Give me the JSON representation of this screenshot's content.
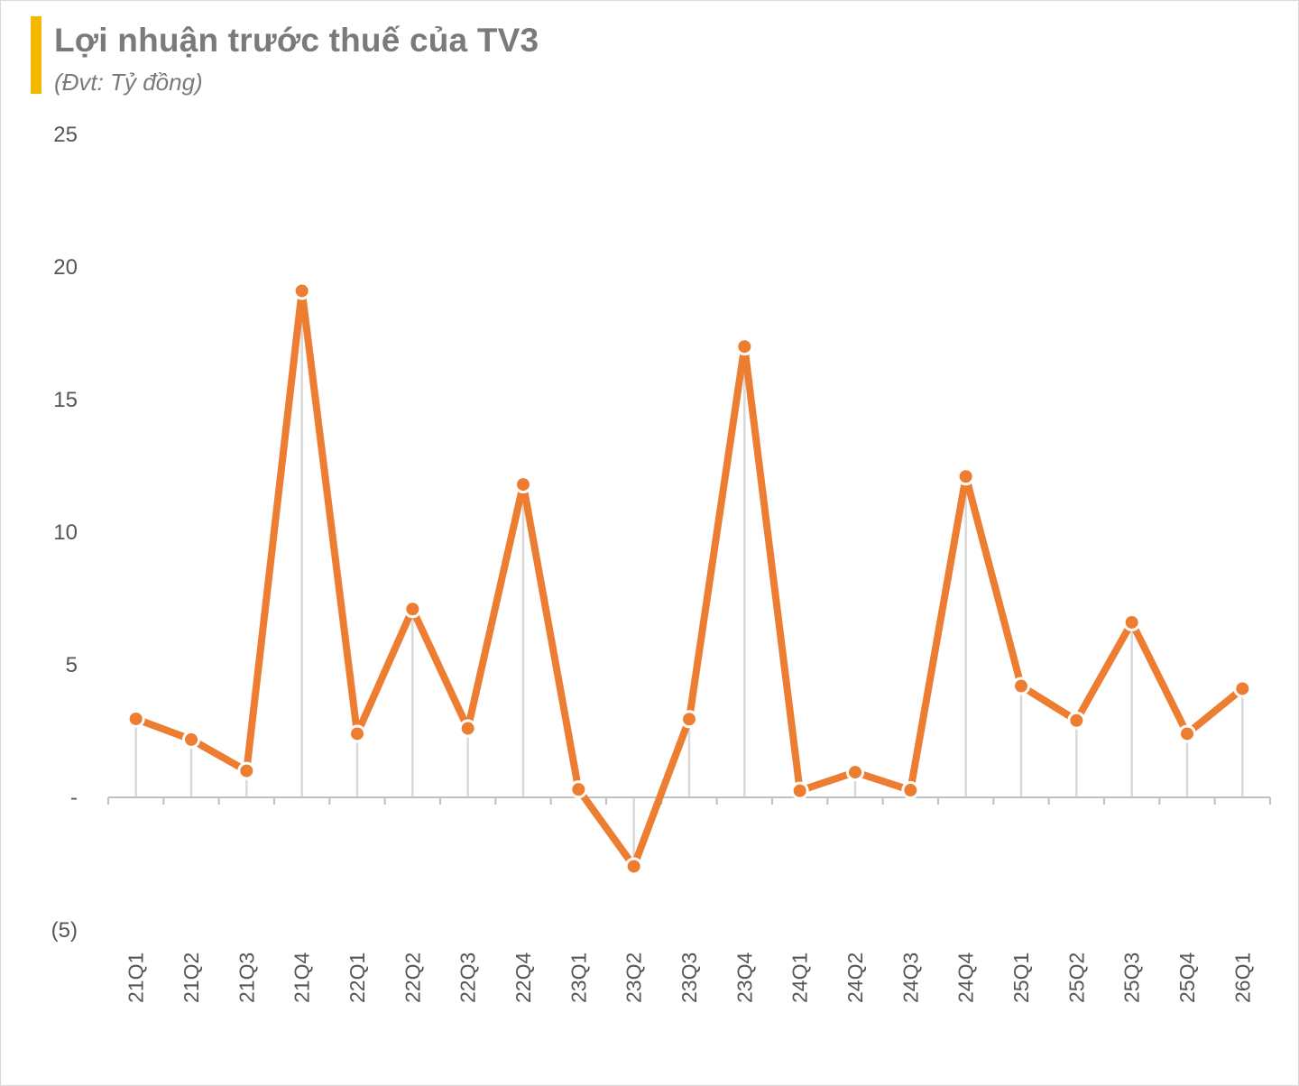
{
  "chart_data": {
    "type": "line",
    "title": "Lợi nhuận trước thuế của TV3",
    "subtitle": "(Đvt: Tỷ đồng)",
    "categories": [
      "21Q1",
      "21Q2",
      "21Q3",
      "21Q4",
      "22Q1",
      "22Q2",
      "22Q3",
      "22Q4",
      "23Q1",
      "23Q2",
      "23Q3",
      "23Q4",
      "24Q1",
      "24Q2",
      "24Q3",
      "24Q4",
      "25Q1",
      "25Q2",
      "25Q3",
      "25Q4",
      "26Q1"
    ],
    "series": [
      {
        "values": [
          2.96,
          2.18,
          1.0,
          19.1,
          2.4,
          7.1,
          2.6,
          11.8,
          0.3,
          -2.6,
          2.95,
          17.0,
          0.25,
          0.95,
          0.27,
          12.1,
          4.2,
          2.9,
          6.6,
          2.4,
          4.1
        ],
        "color": "#ed7d31"
      }
    ],
    "yticks": [
      -5,
      0,
      5,
      10,
      15,
      20,
      25
    ],
    "ytick_labels": [
      "(5)",
      "-",
      "5",
      "10",
      "15",
      "20",
      "25"
    ],
    "ylim": [
      -5,
      25
    ],
    "xlabel": "",
    "ylabel": "",
    "grid": false,
    "drop_lines": true,
    "marker": "circle",
    "legend": "none",
    "accent_color": "#f5b800"
  }
}
